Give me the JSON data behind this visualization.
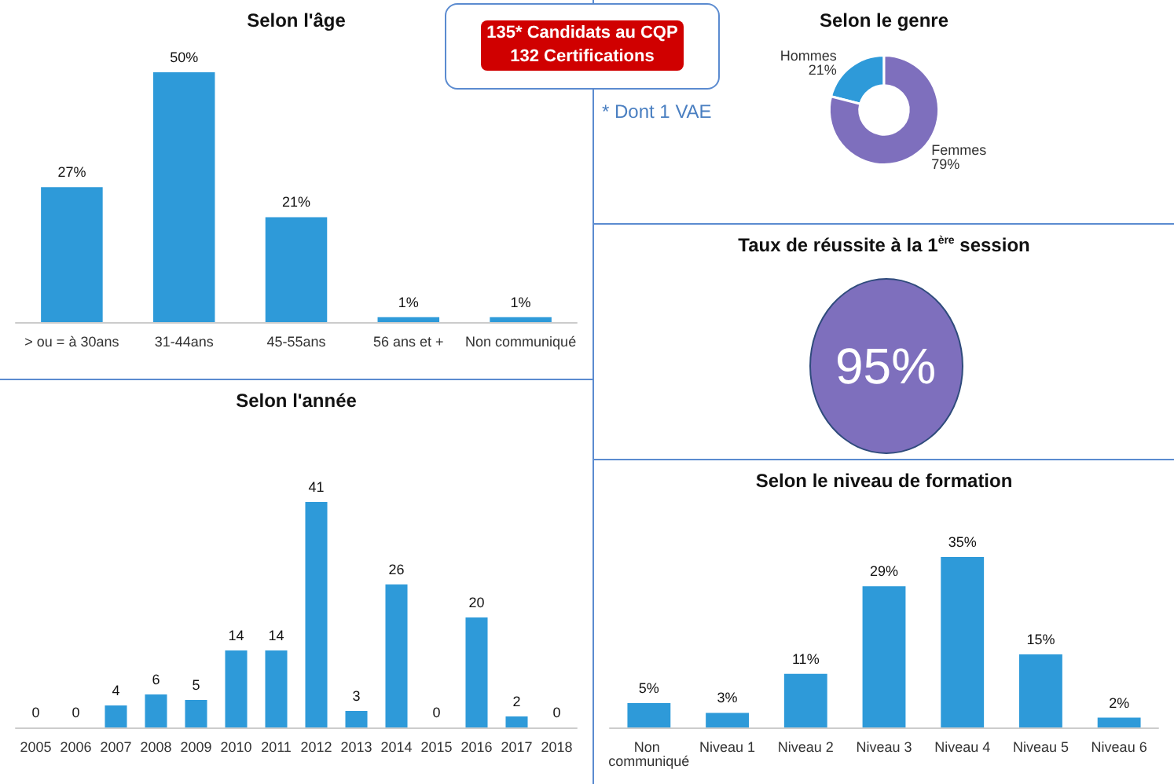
{
  "chart_data": [
    {
      "type": "bar",
      "title": "Selon l'âge",
      "categories": [
        "> ou = à 30ans",
        "31-44ans",
        "45-55ans",
        "56 ans et +",
        "Non communiqué"
      ],
      "values": [
        27,
        50,
        21,
        1,
        1
      ],
      "color": "#2e9ad9",
      "value_labels": [
        "27%",
        "50%",
        "21%",
        "1%",
        "1%"
      ]
    },
    {
      "type": "other",
      "annotations": [
        "135* Candidats au CQP",
        "132 Certifications",
        "* Dont 1 VAE"
      ]
    },
    {
      "type": "donut",
      "title": "Selon le genre",
      "categories": [
        "Hommes",
        "Femmes"
      ],
      "values": [
        21,
        79
      ],
      "colors": [
        "#2e9ad9",
        "#7e6fbd"
      ],
      "value_labels": [
        "21%",
        "79%"
      ]
    },
    {
      "type": "other",
      "title": "Taux de réussite à la 1$^{ère}$ session",
      "annotations": [
        "95%"
      ]
    },
    {
      "type": "bar",
      "title": "Selon l'année",
      "categories": [
        "2005",
        "2006",
        "2007",
        "2008",
        "2009",
        "2010",
        "2011",
        "2012",
        "2013",
        "2014",
        "2015",
        "2016",
        "2017",
        "2018"
      ],
      "values": [
        0,
        0,
        4,
        6,
        5,
        14,
        14,
        41,
        3,
        26,
        0,
        20,
        2,
        0
      ],
      "color": "#2e9ad9",
      "data_labels": true
    },
    {
      "type": "bar",
      "title": "Selon le niveau de formation",
      "categories": [
        "Non communiqué",
        "Niveau 1",
        "Niveau 2",
        "Niveau 3",
        "Niveau 4",
        "Niveau 5",
        "Niveau 6"
      ],
      "values": [
        5,
        3,
        11,
        29,
        35,
        15,
        2
      ],
      "color": "#2e9ad9",
      "value_labels": [
        "5%",
        "3%",
        "11%",
        "29%",
        "35%",
        "15%",
        "2%"
      ]
    }
  ]
}
